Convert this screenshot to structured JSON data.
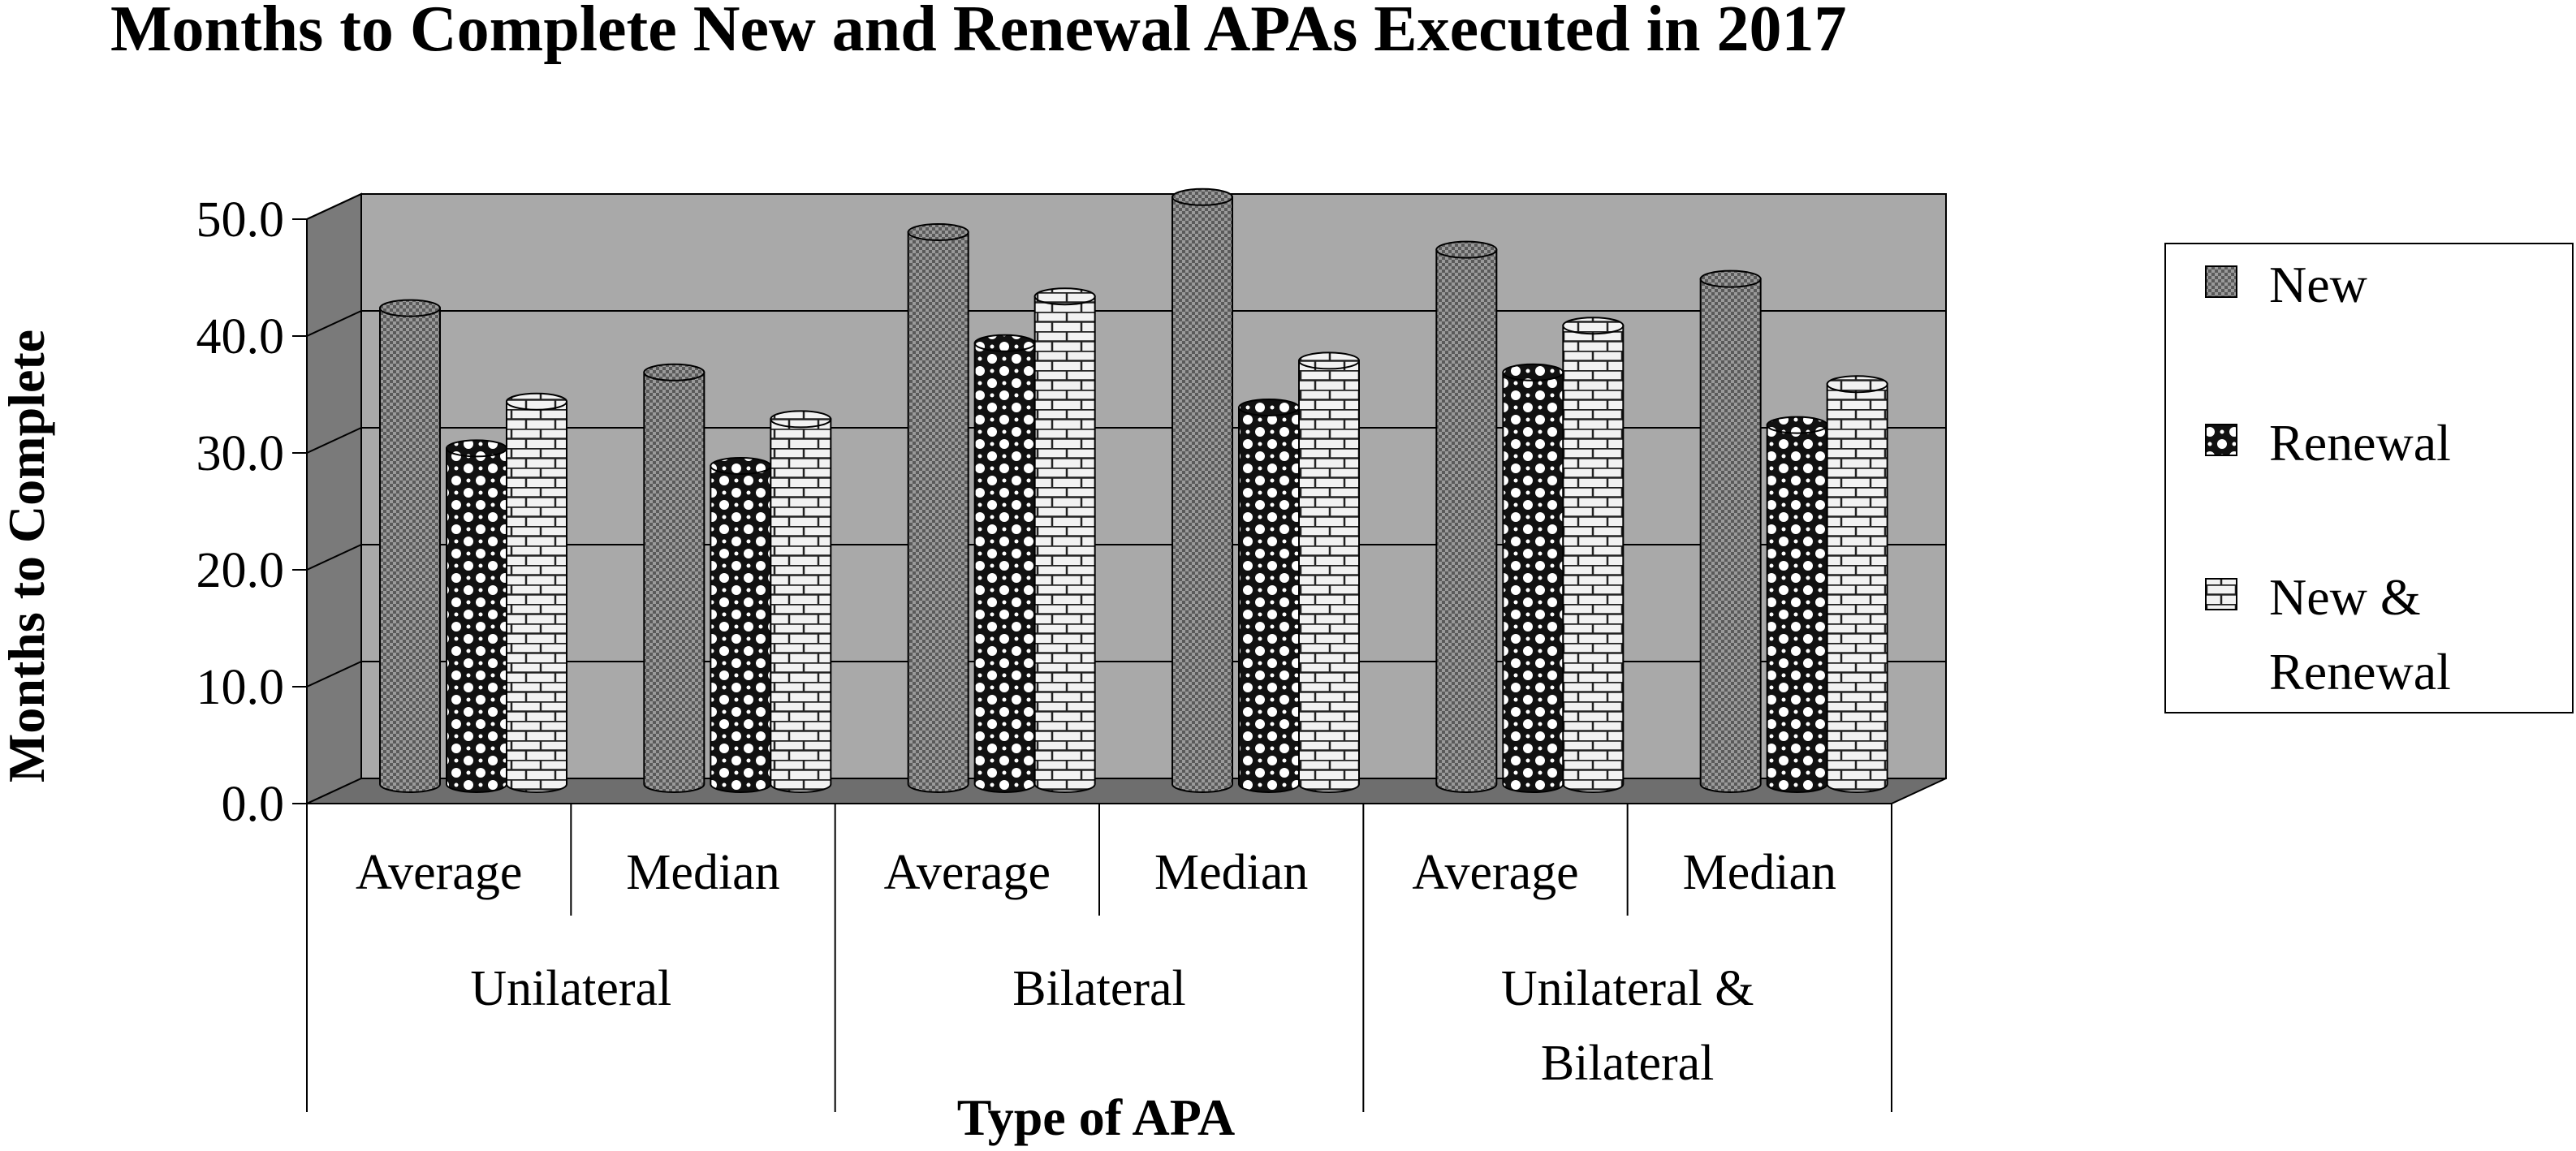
{
  "chart_data": {
    "type": "bar",
    "title": "Months to Complete New and Renewal APAs Executed in 2017",
    "xlabel": "Type of APA",
    "ylabel": "Months to Complete",
    "ylim": [
      0,
      50
    ],
    "yticks": [
      "0.0",
      "10.0",
      "20.0",
      "30.0",
      "40.0",
      "50.0"
    ],
    "categories": [
      "Average",
      "Median",
      "Average",
      "Median",
      "Average",
      "Median"
    ],
    "groups": [
      {
        "label_lines": [
          "Unilateral"
        ],
        "span": [
          0,
          1
        ]
      },
      {
        "label_lines": [
          "Bilateral"
        ],
        "span": [
          2,
          3
        ]
      },
      {
        "label_lines": [
          "Unilateral &",
          "Bilateral"
        ],
        "span": [
          4,
          5
        ]
      }
    ],
    "series": [
      {
        "name": "New",
        "values": [
          41.0,
          35.5,
          47.5,
          50.5,
          46.0,
          43.5
        ]
      },
      {
        "name": "Renewal",
        "values": [
          29.0,
          27.5,
          38.0,
          32.5,
          35.5,
          31.0
        ]
      },
      {
        "name": "New & Renewal",
        "values": [
          33.0,
          31.5,
          42.0,
          36.5,
          39.5,
          34.5
        ]
      }
    ],
    "legend_lines": [
      [
        "New"
      ],
      [
        "Renewal"
      ],
      [
        "New &",
        "Renewal"
      ]
    ],
    "legend_position": "right",
    "grid": true,
    "colors": {
      "plot_back": "#a9a9a9",
      "floor": "#6e6e6e",
      "side_wall": "#7a7a7a",
      "gridline": "#000000"
    }
  }
}
